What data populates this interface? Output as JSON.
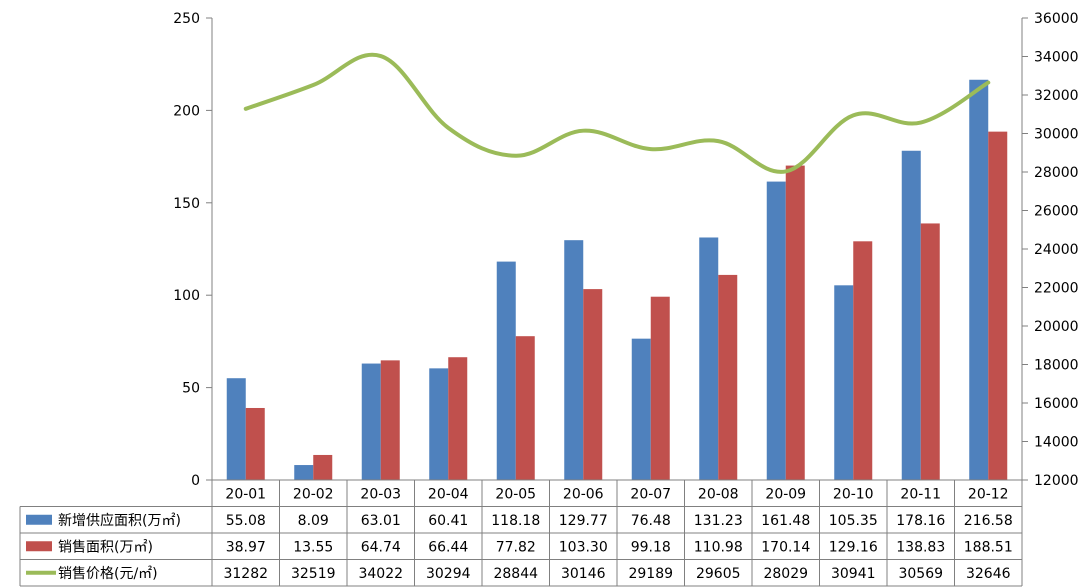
{
  "chart_data": {
    "type": "bar",
    "categories": [
      "20-01",
      "20-02",
      "20-03",
      "20-04",
      "20-05",
      "20-06",
      "20-07",
      "20-08",
      "20-09",
      "20-10",
      "20-11",
      "20-12"
    ],
    "series": [
      {
        "name": "新增供应面积(万㎡)",
        "kind": "bar",
        "axis": "left",
        "color": "#4F81BD",
        "values": [
          55.08,
          8.09,
          63.01,
          60.41,
          118.18,
          129.77,
          76.48,
          131.23,
          161.48,
          105.35,
          178.16,
          216.58
        ],
        "labels": [
          "55.08",
          "8.09",
          "63.01",
          "60.41",
          "118.18",
          "129.77",
          "76.48",
          "131.23",
          "161.48",
          "105.35",
          "178.16",
          "216.58"
        ]
      },
      {
        "name": "销售面积(万㎡)",
        "kind": "bar",
        "axis": "left",
        "color": "#C0504D",
        "values": [
          38.97,
          13.55,
          64.74,
          66.44,
          77.82,
          103.3,
          99.18,
          110.98,
          170.14,
          129.16,
          138.83,
          188.51
        ],
        "labels": [
          "38.97",
          "13.55",
          "64.74",
          "66.44",
          "77.82",
          "103.30",
          "99.18",
          "110.98",
          "170.14",
          "129.16",
          "138.83",
          "188.51"
        ]
      },
      {
        "name": "销售价格(元/㎡)",
        "kind": "line",
        "axis": "right",
        "color": "#9BBB59",
        "values": [
          31282,
          32519,
          34022,
          30294,
          28844,
          30146,
          29189,
          29605,
          28029,
          30941,
          30569,
          32646
        ],
        "labels": [
          "31282",
          "32519",
          "34022",
          "30294",
          "28844",
          "30146",
          "29189",
          "29605",
          "28029",
          "30941",
          "30569",
          "32646"
        ]
      }
    ],
    "y_left": {
      "min": 0,
      "max": 250,
      "ticks": [
        0,
        50,
        100,
        150,
        200,
        250
      ],
      "tick_labels": [
        "0",
        "50",
        "100",
        "150",
        "200",
        "250"
      ]
    },
    "y_right": {
      "min": 12000,
      "max": 36000,
      "ticks": [
        12000,
        14000,
        16000,
        18000,
        20000,
        22000,
        24000,
        26000,
        28000,
        30000,
        32000,
        34000,
        36000
      ],
      "tick_labels": [
        "12000",
        "14000",
        "16000",
        "18000",
        "20000",
        "22000",
        "24000",
        "26000",
        "28000",
        "30000",
        "32000",
        "34000",
        "36000"
      ]
    },
    "grid": false,
    "legend": "data-table-left",
    "title": "",
    "xlabel": "",
    "ylabel": ""
  }
}
